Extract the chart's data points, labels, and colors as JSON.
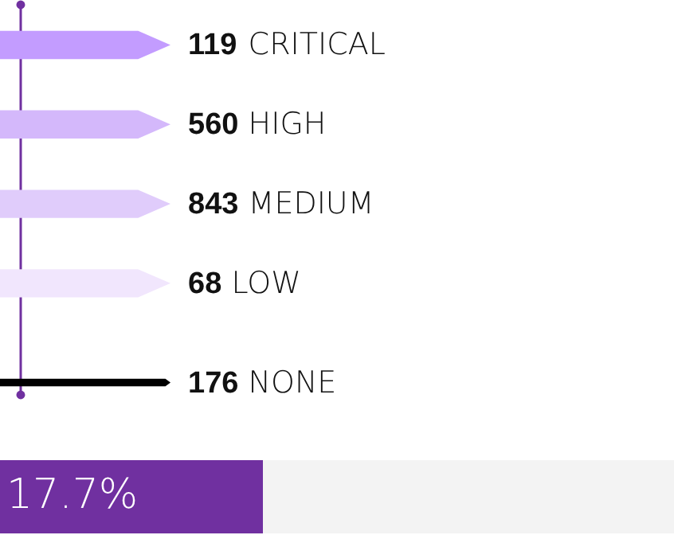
{
  "chart_data": {
    "type": "other",
    "categories": [
      "CRITICAL",
      "HIGH",
      "MEDIUM",
      "LOW",
      "NONE"
    ],
    "values": [
      119,
      560,
      843,
      68,
      176
    ],
    "colors": [
      "#c39cff",
      "#d4b8fb",
      "#e0ccfb",
      "#f1e6fd",
      "#000000"
    ],
    "data_labels": true,
    "annotations": [
      "17.7%"
    ]
  }
}
